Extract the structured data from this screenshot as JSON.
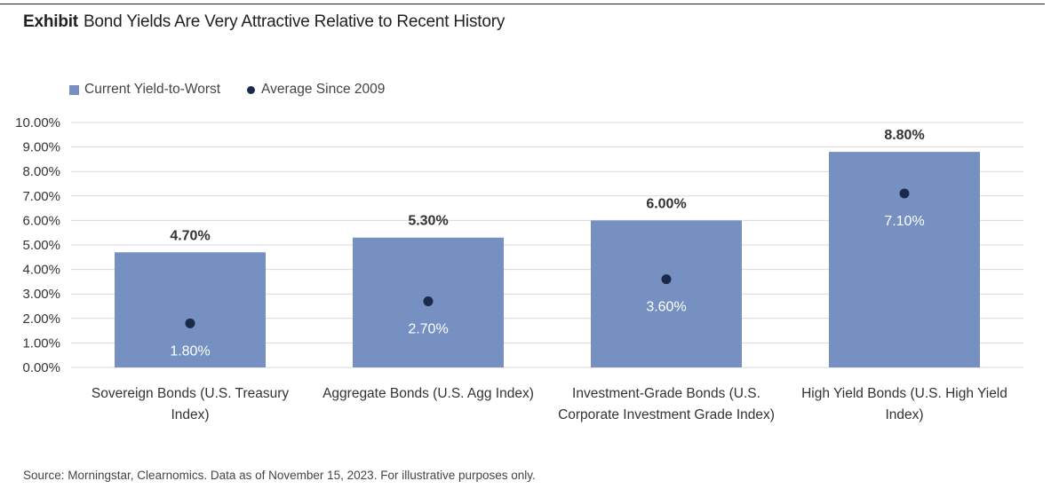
{
  "exhibit_label": "Exhibit",
  "title": "Bond Yields Are Very Attractive Relative to Recent History",
  "legend": {
    "current": "Current Yield-to-Worst",
    "average": "Average Since 2009"
  },
  "source": "Source: Morningstar, Clearnomics. Data as of November 15, 2023. For illustrative purposes only.",
  "colors": {
    "bar": "#7590c1",
    "dot": "#1c2a4a",
    "grid": "#d9d9d9"
  },
  "chart_data": {
    "type": "bar",
    "title": "Bond Yields Are Very Attractive Relative to Recent History",
    "categories": [
      [
        "Sovereign Bonds (U.S. Treasury",
        "Index)"
      ],
      [
        "Aggregate Bonds (U.S. Agg Index)"
      ],
      [
        "Investment-Grade Bonds (U.S.",
        "Corporate Investment Grade Index)"
      ],
      [
        "High Yield Bonds (U.S. High Yield",
        "Index)"
      ]
    ],
    "series": [
      {
        "name": "Current Yield-to-Worst",
        "kind": "bar",
        "values": [
          4.7,
          5.3,
          6.0,
          8.8
        ],
        "labels": [
          "4.70%",
          "5.30%",
          "6.00%",
          "8.80%"
        ]
      },
      {
        "name": "Average Since 2009",
        "kind": "dot",
        "values": [
          1.8,
          2.7,
          3.6,
          7.1
        ],
        "labels": [
          "1.80%",
          "2.70%",
          "3.60%",
          "7.10%"
        ]
      }
    ],
    "yticks": [
      "0.00%",
      "1.00%",
      "2.00%",
      "3.00%",
      "4.00%",
      "5.00%",
      "6.00%",
      "7.00%",
      "8.00%",
      "9.00%",
      "10.00%"
    ],
    "ylim": [
      0,
      10
    ],
    "grid": true,
    "legend_position": "top-left"
  }
}
